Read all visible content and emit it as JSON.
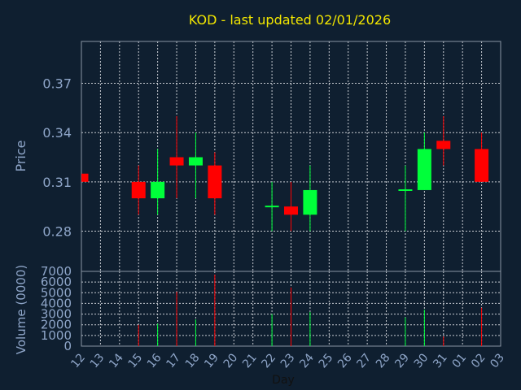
{
  "chart_data": {
    "type": "candlestick",
    "title": "KOD - last updated 02/01/2026",
    "price_axis": {
      "label": "Price",
      "ticks": [
        "0.37",
        "0.34",
        "0.31",
        "0.28"
      ],
      "ylim": [
        0.2555,
        0.3955
      ]
    },
    "volume_axis": {
      "label": "Volume (0000)",
      "ticks": [
        "7000",
        "6000",
        "5000",
        "4000",
        "3000",
        "2000",
        "1000",
        "0"
      ],
      "ylim": [
        0,
        7000
      ]
    },
    "x_axis": {
      "label": "Day",
      "ticks": [
        "12",
        "13",
        "14",
        "15",
        "16",
        "17",
        "18",
        "19",
        "20",
        "21",
        "22",
        "23",
        "24",
        "25",
        "26",
        "27",
        "28",
        "29",
        "30",
        "31",
        "01",
        "02",
        "03"
      ]
    },
    "colors": {
      "up": "#00ff3a",
      "down": "#ff0000",
      "background": "#0f1f30",
      "title": "#f2e600",
      "axis_text": "#8fa6c9"
    },
    "grid": true,
    "candles": [
      {
        "day": "12",
        "open": 0.315,
        "close": 0.31,
        "high": 0.315,
        "low": 0.31,
        "volume": 0
      },
      {
        "day": "15",
        "open": 0.31,
        "close": 0.3,
        "high": 0.32,
        "low": 0.29,
        "volume": 2000
      },
      {
        "day": "16",
        "open": 0.3,
        "close": 0.31,
        "high": 0.33,
        "low": 0.29,
        "volume": 2100
      },
      {
        "day": "17",
        "open": 0.325,
        "close": 0.32,
        "high": 0.35,
        "low": 0.3,
        "volume": 5100
      },
      {
        "day": "18",
        "open": 0.32,
        "close": 0.325,
        "high": 0.34,
        "low": 0.3,
        "volume": 2500
      },
      {
        "day": "19",
        "open": 0.32,
        "close": 0.3,
        "high": 0.328,
        "low": 0.29,
        "volume": 6700
      },
      {
        "day": "22",
        "open": 0.295,
        "close": 0.295,
        "high": 0.31,
        "low": 0.28,
        "volume": 3000
      },
      {
        "day": "23",
        "open": 0.295,
        "close": 0.29,
        "high": 0.31,
        "low": 0.28,
        "volume": 5500
      },
      {
        "day": "24",
        "open": 0.29,
        "close": 0.305,
        "high": 0.32,
        "low": 0.28,
        "volume": 3200
      },
      {
        "day": "29",
        "open": 0.305,
        "close": 0.305,
        "high": 0.32,
        "low": 0.28,
        "volume": 2700
      },
      {
        "day": "30",
        "open": 0.305,
        "close": 0.33,
        "high": 0.34,
        "low": 0.305,
        "volume": 3400
      },
      {
        "day": "31",
        "open": 0.335,
        "close": 0.33,
        "high": 0.35,
        "low": 0.32,
        "volume": 900
      },
      {
        "day": "02",
        "open": 0.33,
        "close": 0.31,
        "high": 0.34,
        "low": 0.31,
        "volume": 3600
      }
    ]
  }
}
